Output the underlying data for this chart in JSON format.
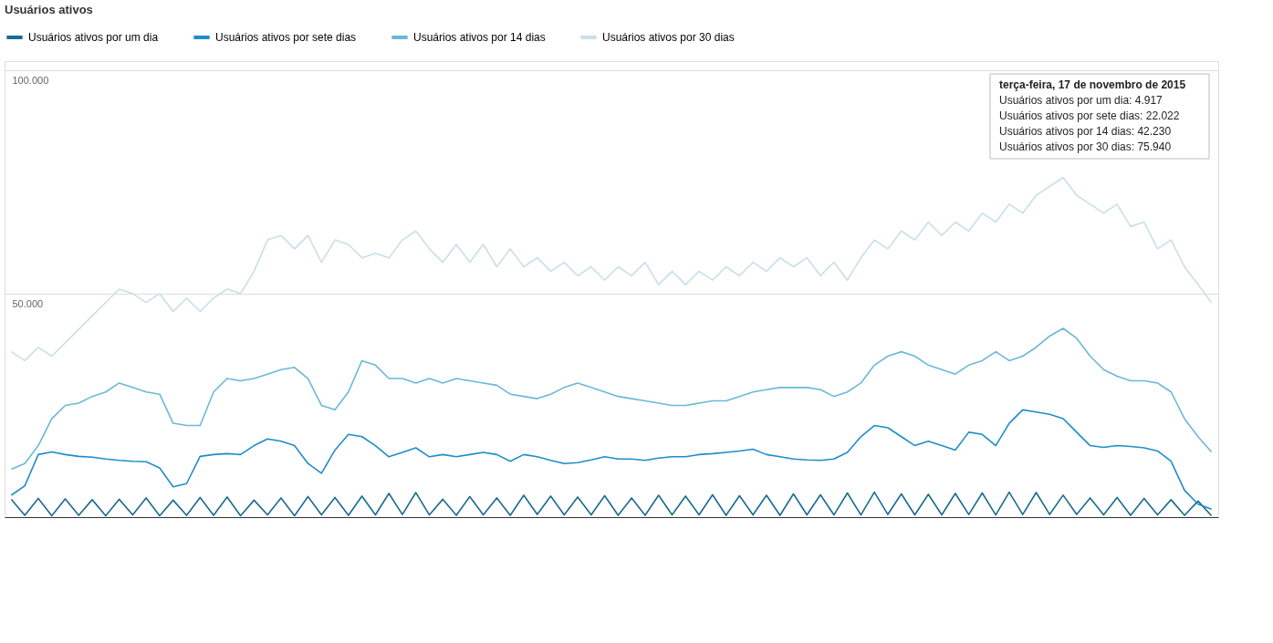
{
  "chart_data": {
    "type": "line",
    "title": "Usuários ativos",
    "categories": [
      null,
      null,
      null,
      null,
      null,
      null,
      null,
      null,
      null,
      null,
      null,
      null,
      null,
      null,
      null,
      null,
      null,
      null,
      null,
      null,
      null,
      null,
      null,
      null,
      null,
      null,
      null,
      null,
      null,
      null,
      null,
      null,
      null,
      null,
      null,
      null,
      null,
      null,
      null,
      null,
      null,
      null,
      null,
      null,
      null,
      null,
      null,
      null,
      null,
      null,
      null,
      null,
      null,
      null,
      null,
      null,
      null,
      null,
      null,
      null,
      null,
      null,
      null,
      null,
      null,
      null,
      null,
      null,
      null,
      null,
      null,
      null,
      null,
      null,
      null,
      null,
      null,
      null,
      null,
      null,
      null,
      null,
      null,
      null,
      null,
      null,
      null,
      null,
      null,
      null
    ],
    "series": [
      {
        "name": "Usuários ativos por um dia",
        "color": "#1a6b8f",
        "values": [
          4000,
          400,
          4200,
          300,
          4100,
          400,
          3900,
          300,
          4000,
          500,
          4300,
          300,
          3800,
          400,
          4400,
          400,
          4500,
          300,
          3800,
          500,
          4300,
          300,
          4600,
          500,
          4400,
          400,
          4700,
          500,
          5300,
          600,
          5500,
          500,
          4000,
          400,
          4600,
          500,
          4300,
          400,
          4900,
          600,
          4700,
          500,
          4500,
          500,
          4800,
          400,
          4300,
          400,
          4900,
          500,
          4700,
          500,
          5000,
          400,
          4800,
          500,
          4900,
          400,
          5200,
          500,
          5000,
          500,
          5400,
          500,
          5600,
          600,
          5200,
          500,
          5100,
          500,
          5300,
          600,
          5400,
          500,
          5600,
          600,
          5500,
          600,
          4917,
          600,
          4300,
          500,
          4400,
          400,
          4200,
          500,
          3900,
          400,
          3600,
          300
        ]
      },
      {
        "name": "Usuários ativos por sete dias",
        "color": "#1f8dc8",
        "values": [
          4900,
          7000,
          14000,
          14600,
          14000,
          13600,
          13400,
          13000,
          12700,
          12500,
          12400,
          11000,
          6800,
          7500,
          13600,
          14000,
          14200,
          14000,
          16000,
          17500,
          17000,
          16000,
          12000,
          9800,
          15000,
          18500,
          18000,
          16000,
          13500,
          14500,
          15500,
          13500,
          14000,
          13500,
          14000,
          14500,
          14000,
          12500,
          14000,
          13500,
          12700,
          12000,
          12200,
          12800,
          13500,
          13000,
          13000,
          12700,
          13200,
          13500,
          13500,
          14000,
          14200,
          14500,
          14800,
          15200,
          14000,
          13500,
          13000,
          12800,
          12700,
          13000,
          14500,
          18000,
          20500,
          20000,
          18000,
          16000,
          17000,
          16000,
          15000,
          19000,
          18500,
          16000,
          21000,
          24000,
          23500,
          23000,
          22022,
          19000,
          16000,
          15600,
          16000,
          15800,
          15500,
          14800,
          12500,
          6000,
          2900,
          1800
        ]
      },
      {
        "name": "Usuários ativos por 14 dias",
        "color": "#6bb8d8",
        "values": [
          10700,
          12000,
          16000,
          22000,
          25000,
          25500,
          27000,
          28000,
          30000,
          29000,
          28000,
          27500,
          21000,
          20500,
          20500,
          28000,
          31000,
          30500,
          31000,
          32000,
          33000,
          33500,
          31000,
          25000,
          24000,
          28000,
          35000,
          34000,
          31000,
          31000,
          30000,
          31000,
          30000,
          31000,
          30500,
          30000,
          29500,
          27500,
          27000,
          26500,
          27500,
          29000,
          30000,
          29000,
          28000,
          27000,
          26500,
          26000,
          25500,
          25000,
          25000,
          25500,
          26000,
          26000,
          27000,
          28000,
          28500,
          29000,
          29000,
          29000,
          28500,
          27000,
          28000,
          30000,
          34000,
          36000,
          37000,
          36000,
          34000,
          33000,
          32000,
          34000,
          35000,
          37000,
          35000,
          36000,
          38000,
          40500,
          42230,
          40000,
          36000,
          33000,
          31500,
          30500,
          30500,
          30000,
          28000,
          22000,
          18000,
          14600
        ]
      },
      {
        "name": "Usuários ativos por 30 dias",
        "color": "#c9dfe8",
        "values": [
          37000,
          35000,
          38000,
          36000,
          39000,
          42000,
          45000,
          48000,
          51000,
          50000,
          48000,
          50000,
          46000,
          49000,
          46000,
          49000,
          51000,
          50000,
          55000,
          62000,
          63000,
          60000,
          63000,
          57000,
          62000,
          61000,
          58000,
          59000,
          58000,
          62000,
          64000,
          60000,
          57000,
          61000,
          57000,
          61000,
          56000,
          60000,
          56000,
          58000,
          55000,
          57000,
          54000,
          56000,
          53000,
          56000,
          54000,
          57000,
          52000,
          55000,
          52000,
          55000,
          53000,
          56000,
          54000,
          57000,
          55000,
          58000,
          56000,
          58000,
          54000,
          57000,
          53000,
          58000,
          62000,
          60000,
          64000,
          62000,
          66000,
          63000,
          66000,
          64000,
          68000,
          66000,
          70000,
          68000,
          72000,
          74000,
          75940,
          72000,
          70000,
          68000,
          70000,
          65000,
          66000,
          60000,
          62000,
          56000,
          52000,
          48000
        ]
      }
    ],
    "ylim": [
      0,
      102000
    ],
    "yticks": [
      {
        "value": 50000,
        "label": "50.000"
      },
      {
        "value": 100000,
        "label": "100.000"
      }
    ],
    "grid": "y",
    "legend": "top left",
    "annotations": [
      "terça-feira, 17 de novembro de 2015",
      "Usuários ativos por um dia: 4.917",
      "Usuários ativos por sete dias: 22.022",
      "Usuários ativos por 14 dias: 42.230",
      "Usuários ativos por 30 dias: 75.940"
    ]
  }
}
